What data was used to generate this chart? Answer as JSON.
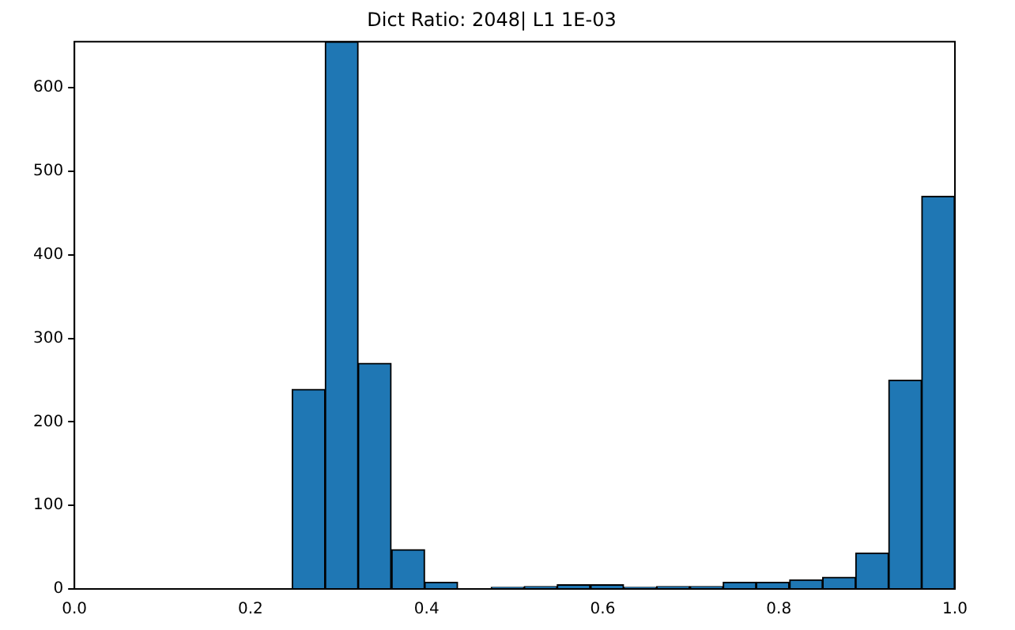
{
  "chart_data": {
    "type": "histogram",
    "title": "Dict Ratio: 2048| L1 1E-03",
    "bins": [
      0.247,
      0.285,
      0.322,
      0.36,
      0.398,
      0.435,
      0.473,
      0.511,
      0.548,
      0.586,
      0.624,
      0.661,
      0.699,
      0.737,
      0.774,
      0.812,
      0.85,
      0.887,
      0.925,
      0.962,
      1.0
    ],
    "values": [
      239,
      655,
      270,
      47,
      8,
      0,
      2,
      3,
      5,
      5,
      2,
      3,
      3,
      8,
      8,
      11,
      14,
      43,
      250,
      470
    ],
    "color": "#1f77b4",
    "xlim": [
      0,
      1
    ],
    "xticks": [
      {
        "value": 0,
        "label": "0.0"
      },
      {
        "value": 0.2,
        "label": "0.2"
      },
      {
        "value": 0.4,
        "label": "0.4"
      },
      {
        "value": 0.6,
        "label": "0.6"
      },
      {
        "value": 0.8,
        "label": "0.8"
      },
      {
        "value": 1,
        "label": "1.0"
      }
    ],
    "ylim": [
      0,
      655
    ],
    "yticks": [
      0,
      100,
      200,
      300,
      400,
      500,
      600
    ],
    "grid": false
  }
}
